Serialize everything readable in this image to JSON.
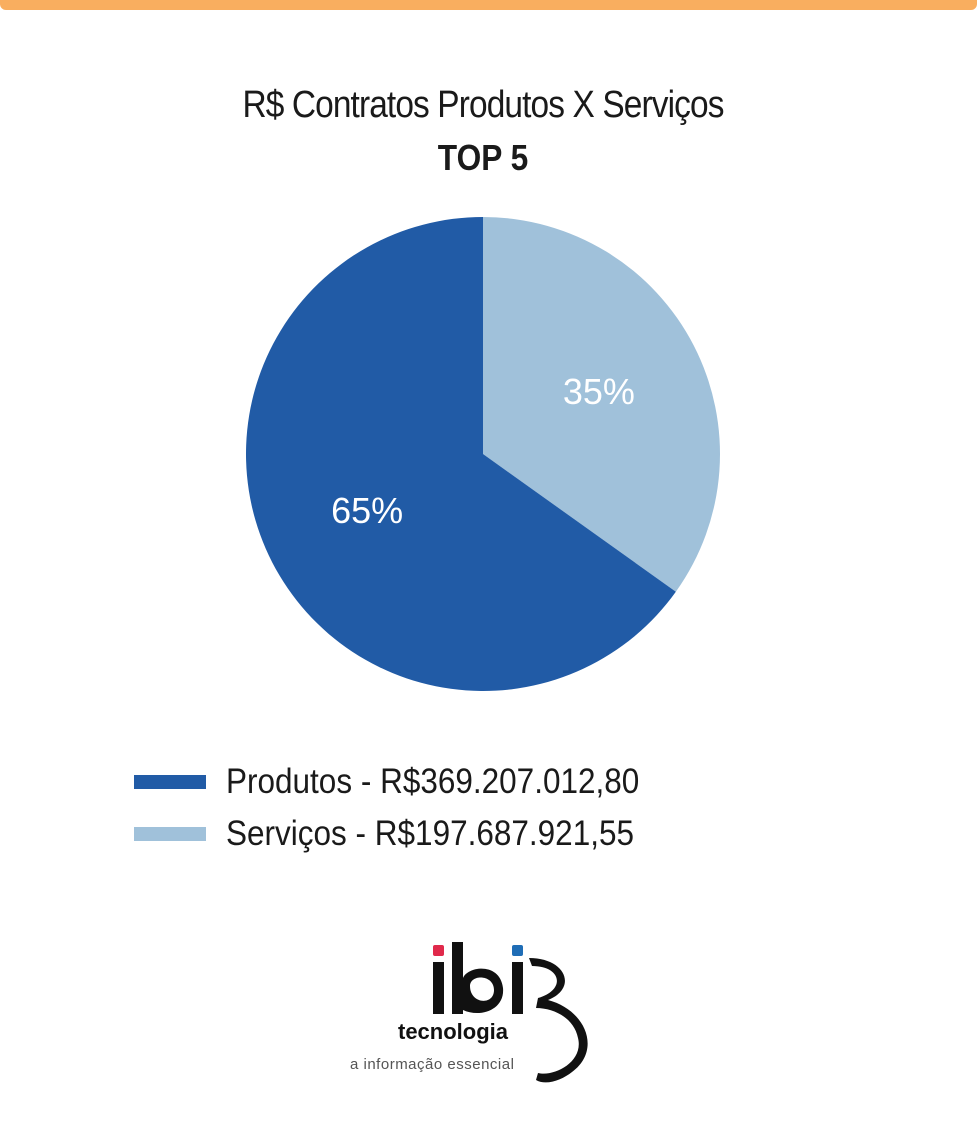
{
  "header": {
    "accent_color": "#F9AE5F"
  },
  "chart_data": {
    "type": "pie",
    "title": "R$ Contratos Produtos X Serviços",
    "subtitle": "TOP 5",
    "slices": [
      {
        "name": "Produtos",
        "value": 369207012.8,
        "percent_label": "65%",
        "legend_label": "Produtos - R$369.207.012,80",
        "color": "#215BA6"
      },
      {
        "name": "Serviços",
        "value": 197687921.55,
        "percent_label": "35%",
        "legend_label": "Serviços - R$197.687.921,55",
        "color": "#A0C1DA"
      }
    ],
    "legend_placement": "bottom-left"
  },
  "logo": {
    "brand": "ibi",
    "tagline_1": "tecnologia",
    "tagline_2": "a informação essencial",
    "dot_red": "#E0294B",
    "dot_blue": "#1F6DB6"
  }
}
